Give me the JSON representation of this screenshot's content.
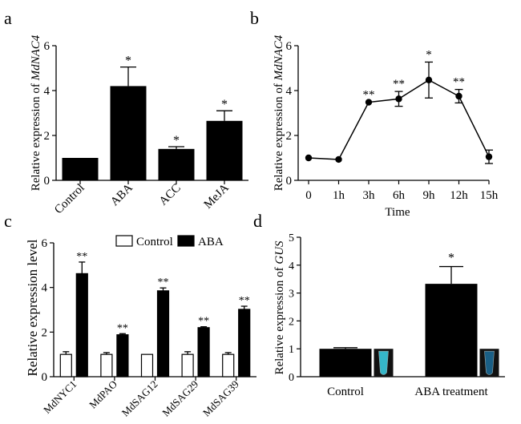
{
  "panels": {
    "a": {
      "letter": "a"
    },
    "b": {
      "letter": "b"
    },
    "c": {
      "letter": "c"
    },
    "d": {
      "letter": "d"
    }
  },
  "chart_data": [
    {
      "panel": "a",
      "type": "bar",
      "ylabel_prefix": "Relative expression of ",
      "ylabel_gene": "MdNAC4",
      "xlabel": "",
      "ylim": [
        0,
        6
      ],
      "yticks": [
        0,
        2,
        4,
        6
      ],
      "categories": [
        "Control",
        "ABA",
        "ACC",
        "MeJA"
      ],
      "values": [
        1.0,
        4.2,
        1.4,
        2.65
      ],
      "errors": [
        0.0,
        0.85,
        0.1,
        0.45
      ],
      "significance": [
        "",
        "*",
        "*",
        "*"
      ],
      "bar_color": "#000000"
    },
    {
      "panel": "b",
      "type": "line",
      "ylabel_prefix": "Relative expression of ",
      "ylabel_gene": "MdNAC4",
      "xlabel": "Time",
      "ylim": [
        0,
        6
      ],
      "yticks": [
        0,
        2,
        4,
        6
      ],
      "x": [
        "0",
        "1h",
        "3h",
        "6h",
        "9h",
        "12h",
        "15h"
      ],
      "values": [
        1.0,
        0.93,
        3.48,
        3.63,
        4.47,
        3.75,
        1.05
      ],
      "errors": [
        0.0,
        0.0,
        0.0,
        0.33,
        0.8,
        0.3,
        0.3
      ],
      "significance": [
        "",
        "",
        "**",
        "**",
        "*",
        "**",
        ""
      ]
    },
    {
      "panel": "c",
      "type": "bar",
      "ylabel": "Relative expression level",
      "xlabel": "",
      "ylim": [
        0,
        6
      ],
      "yticks": [
        0,
        2,
        4,
        6
      ],
      "categories": [
        "MdNYC1",
        "MdPAO",
        "MdSAG12",
        "MdSAG29",
        "MdSAG39"
      ],
      "series": [
        {
          "name": "Control",
          "values": [
            1.0,
            1.0,
            1.0,
            1.0,
            1.0
          ],
          "errors": [
            0.12,
            0.08,
            0.0,
            0.12,
            0.08
          ],
          "fill": "#ffffff"
        },
        {
          "name": "ABA",
          "values": [
            4.62,
            1.88,
            3.85,
            2.2,
            3.02
          ],
          "errors": [
            0.52,
            0.05,
            0.13,
            0.04,
            0.14
          ],
          "fill": "#000000"
        }
      ],
      "significance": [
        "**",
        "**",
        "**",
        "**",
        "**"
      ],
      "legend_position": "top"
    },
    {
      "panel": "d",
      "type": "bar",
      "ylabel_prefix": "Relative expression of ",
      "ylabel_gene": "GUS",
      "xlabel": "",
      "ylim": [
        0,
        5
      ],
      "yticks": [
        0,
        1,
        2,
        3,
        4,
        5
      ],
      "categories": [
        "Control",
        "ABA treatment"
      ],
      "values": [
        1.0,
        3.33
      ],
      "errors": [
        0.04,
        0.62
      ],
      "significance": [
        "",
        "*"
      ],
      "bar_color": "#000000",
      "tube_colors": [
        "#35b6c8",
        "#1a5f86"
      ]
    }
  ]
}
